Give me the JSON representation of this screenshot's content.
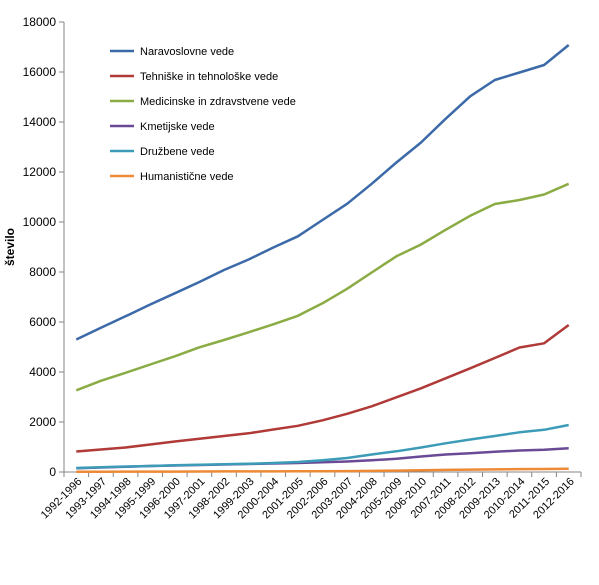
{
  "chart_data": {
    "type": "line",
    "title": "",
    "xlabel": "",
    "ylabel": "število",
    "ylim": [
      0,
      18000
    ],
    "yticks": [
      0,
      2000,
      4000,
      6000,
      8000,
      10000,
      12000,
      14000,
      16000,
      18000
    ],
    "ytick_labels": [
      "0",
      "2000",
      "4000",
      "6000",
      "8000",
      "10000",
      "12000",
      "14000",
      "16000",
      "18000"
    ],
    "grid": false,
    "legend_position": "top-left",
    "categories": [
      "1992-1996",
      "1993-1997",
      "1994-1998",
      "1995-1999",
      "1996-2000",
      "1997-2001",
      "1998-2002",
      "1999-2003",
      "2000-2004",
      "2001-2005",
      "2002-2006",
      "2003-2007",
      "2004-2008",
      "2005-2009",
      "2006-2010",
      "2007-2011",
      "2008-2012",
      "2009-2013",
      "2010-2014",
      "2011-2015",
      "2012-2016"
    ],
    "series": [
      {
        "name": "Naravoslovne vede",
        "color": "#3c6aa8",
        "values": [
          5300,
          5770,
          6230,
          6700,
          7150,
          7600,
          8080,
          8500,
          8980,
          9430,
          10080,
          10730,
          11530,
          12380,
          13180,
          14130,
          15030,
          15680,
          15980,
          16280,
          17080
        ]
      },
      {
        "name": "Tehniške in tehnološke vede",
        "color": "#b03a38",
        "values": [
          820,
          900,
          980,
          1100,
          1220,
          1330,
          1440,
          1550,
          1700,
          1850,
          2070,
          2330,
          2630,
          2990,
          3350,
          3750,
          4150,
          4560,
          4980,
          5150,
          5880
        ]
      },
      {
        "name": "Medicinske in zdravstvene vede",
        "color": "#8bab44",
        "values": [
          3270,
          3650,
          3970,
          4300,
          4630,
          4990,
          5280,
          5590,
          5910,
          6250,
          6750,
          7330,
          7980,
          8630,
          9100,
          9690,
          10250,
          10720,
          10880,
          11100,
          11530
        ]
      },
      {
        "name": "Kmetijske vede",
        "color": "#6a4a96",
        "values": [
          150,
          180,
          210,
          240,
          260,
          280,
          300,
          320,
          340,
          360,
          390,
          420,
          470,
          530,
          620,
          700,
          750,
          810,
          860,
          890,
          950
        ]
      },
      {
        "name": "Družbene vede",
        "color": "#3c9cb8",
        "values": [
          160,
          190,
          220,
          240,
          270,
          290,
          310,
          330,
          360,
          400,
          470,
          560,
          700,
          830,
          980,
          1150,
          1300,
          1440,
          1590,
          1690,
          1880
        ]
      },
      {
        "name": "Humanistične vede",
        "color": "#ec8a35",
        "values": [
          10,
          12,
          14,
          16,
          18,
          20,
          22,
          24,
          26,
          28,
          32,
          38,
          45,
          55,
          70,
          85,
          95,
          105,
          115,
          120,
          130
        ]
      }
    ]
  }
}
